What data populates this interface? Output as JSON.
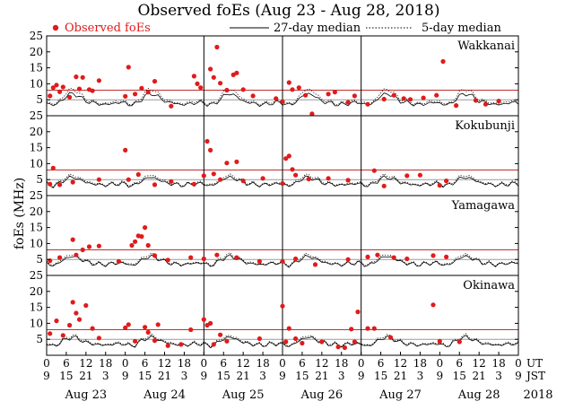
{
  "chart_data": {
    "type": "scatter",
    "title": "Observed foEs (Aug 23 - Aug 28, 2018)",
    "ylabel": "foEs (MHz)",
    "ylim": [
      0,
      25
    ],
    "yticks": [
      0,
      5,
      10,
      15,
      20,
      25
    ],
    "grid_lines_mhz": [
      5,
      8
    ],
    "xlim_hours": [
      0,
      144
    ],
    "legend": {
      "observed": "Observed foEs",
      "median27": "27-day median",
      "median5": "5-day median"
    },
    "x_axis": {
      "ut_label": "UT",
      "jst_label": "JST",
      "ut_ticks": [
        "0",
        "6",
        "12",
        "18",
        "0",
        "6",
        "12",
        "18",
        "0",
        "6",
        "12",
        "18",
        "0",
        "6",
        "12",
        "18",
        "0",
        "6",
        "12",
        "18",
        "0",
        "6",
        "12",
        "18",
        "0"
      ],
      "jst_ticks": [
        "9",
        "15",
        "21",
        "3",
        "9",
        "15",
        "21",
        "3",
        "9",
        "15",
        "21",
        "3",
        "9",
        "15",
        "21",
        "3",
        "9",
        "15",
        "21",
        "3",
        "9",
        "15",
        "21",
        "3",
        "9"
      ],
      "dates": [
        "Aug 23",
        "Aug 24",
        "Aug 25",
        "Aug 26",
        "Aug 27",
        "Aug 28"
      ],
      "year": "2018"
    },
    "day_boundaries_hours": [
      48,
      72,
      96
    ],
    "stations": [
      {
        "name": "Wakkanai",
        "median27": [
          4,
          3.6,
          3.4,
          3.6,
          4.3,
          5.2,
          6.1,
          6.7,
          6.9,
          6.6,
          6,
          5.2,
          4.6,
          4.3,
          4.1,
          3.9,
          3.7,
          3.5,
          3.5,
          3.6,
          3.8,
          4,
          4.1,
          4.1
        ],
        "median5": [
          4.4,
          4,
          3.7,
          3.9,
          4.8,
          6,
          7.2,
          8,
          8.3,
          7.9,
          7,
          6,
          5.2,
          4.8,
          4.5,
          4.3,
          4,
          3.8,
          3.8,
          4,
          4.3,
          4.5,
          4.5,
          4.5
        ],
        "observed": [
          [
            1,
            6.2
          ],
          [
            2,
            8.8
          ],
          [
            3,
            9.6
          ],
          [
            4,
            7.5
          ],
          [
            5,
            9
          ],
          [
            7,
            5.8
          ],
          [
            9,
            12.2
          ],
          [
            10,
            8.4
          ],
          [
            11,
            12
          ],
          [
            13,
            8.2
          ],
          [
            14,
            7.8
          ],
          [
            16,
            11
          ],
          [
            24,
            6.1
          ],
          [
            25,
            15.2
          ],
          [
            27,
            6.8
          ],
          [
            29,
            8.6
          ],
          [
            31,
            7.4
          ],
          [
            33,
            10.8
          ],
          [
            38,
            3
          ],
          [
            45,
            12.4
          ],
          [
            46,
            10
          ],
          [
            47,
            8.8
          ],
          [
            50,
            14.6
          ],
          [
            51,
            12
          ],
          [
            52,
            21.5
          ],
          [
            53,
            10.2
          ],
          [
            55,
            8
          ],
          [
            57,
            12.8
          ],
          [
            58,
            13.4
          ],
          [
            60,
            8.2
          ],
          [
            63,
            6.2
          ],
          [
            70,
            5.4
          ],
          [
            72,
            4.4
          ],
          [
            74,
            10.4
          ],
          [
            75,
            8.2
          ],
          [
            77,
            8.8
          ],
          [
            79,
            6.4
          ],
          [
            81,
            0.6
          ],
          [
            86,
            6.8
          ],
          [
            88,
            7.4
          ],
          [
            92,
            4.2
          ],
          [
            94,
            6.2
          ],
          [
            98,
            3.6
          ],
          [
            103,
            5.2
          ],
          [
            106,
            6.4
          ],
          [
            109,
            5.4
          ],
          [
            111,
            5.1
          ],
          [
            115,
            5.6
          ],
          [
            119,
            6.4
          ],
          [
            121,
            17
          ],
          [
            125,
            3.2
          ],
          [
            131,
            4.8
          ],
          [
            134,
            3.6
          ],
          [
            138,
            4.6
          ]
        ]
      },
      {
        "name": "Kokubunji",
        "median27": [
          3.6,
          3.3,
          3.1,
          3.3,
          3.9,
          4.6,
          5.2,
          5.6,
          5.7,
          5.5,
          5.1,
          4.6,
          4.1,
          3.9,
          3.7,
          3.5,
          3.4,
          3.3,
          3.3,
          3.4,
          3.5,
          3.6,
          3.7,
          3.7
        ],
        "median5": [
          3.9,
          3.6,
          3.4,
          3.6,
          4.3,
          5.1,
          5.8,
          6.2,
          6.4,
          6.1,
          5.6,
          5,
          4.5,
          4.2,
          4,
          3.8,
          3.6,
          3.5,
          3.5,
          3.6,
          3.8,
          3.9,
          4,
          4
        ],
        "observed": [
          [
            1,
            3.6
          ],
          [
            2,
            8.6
          ],
          [
            4,
            3.4
          ],
          [
            8,
            4.2
          ],
          [
            16,
            5
          ],
          [
            24,
            14.2
          ],
          [
            25,
            5
          ],
          [
            28,
            6.6
          ],
          [
            33,
            3.4
          ],
          [
            38,
            4.4
          ],
          [
            45,
            3.6
          ],
          [
            48,
            6.2
          ],
          [
            49,
            17
          ],
          [
            50,
            14.2
          ],
          [
            51,
            6.8
          ],
          [
            53,
            5
          ],
          [
            55,
            10.2
          ],
          [
            58,
            10.6
          ],
          [
            60,
            4.6
          ],
          [
            66,
            5.4
          ],
          [
            72,
            3.8
          ],
          [
            73,
            11.6
          ],
          [
            74,
            12.4
          ],
          [
            75,
            8.2
          ],
          [
            76,
            6.4
          ],
          [
            80,
            5.2
          ],
          [
            86,
            5.4
          ],
          [
            92,
            4.8
          ],
          [
            100,
            7.8
          ],
          [
            103,
            3
          ],
          [
            110,
            6.2
          ],
          [
            114,
            6.4
          ],
          [
            120,
            3.2
          ],
          [
            122,
            4.6
          ]
        ]
      },
      {
        "name": "Yamagawa",
        "median27": [
          3.7,
          3.4,
          3.2,
          3.4,
          4,
          4.8,
          5.4,
          5.8,
          5.9,
          5.7,
          5.3,
          4.8,
          4.3,
          4,
          3.8,
          3.6,
          3.5,
          3.4,
          3.4,
          3.5,
          3.7,
          3.8,
          3.9,
          3.9
        ],
        "median5": [
          4,
          3.7,
          3.5,
          3.7,
          4.4,
          5.3,
          6,
          6.4,
          6.5,
          6.2,
          5.7,
          5.1,
          4.6,
          4.3,
          4.1,
          3.9,
          3.7,
          3.6,
          3.6,
          3.7,
          3.9,
          4,
          4.1,
          4.1
        ],
        "observed": [
          [
            1,
            4.6
          ],
          [
            4,
            5.6
          ],
          [
            8,
            11.2
          ],
          [
            9,
            6.4
          ],
          [
            11,
            8
          ],
          [
            13,
            9
          ],
          [
            16,
            9.2
          ],
          [
            22,
            4.4
          ],
          [
            26,
            9.4
          ],
          [
            27,
            10.6
          ],
          [
            28,
            12.4
          ],
          [
            29,
            12.2
          ],
          [
            30,
            15
          ],
          [
            31,
            9.4
          ],
          [
            33,
            6.2
          ],
          [
            37,
            4.8
          ],
          [
            44,
            5.6
          ],
          [
            48,
            5.2
          ],
          [
            52,
            6.4
          ],
          [
            58,
            5.6
          ],
          [
            65,
            4.4
          ],
          [
            72,
            4.4
          ],
          [
            76,
            5.2
          ],
          [
            82,
            3.4
          ],
          [
            92,
            5
          ],
          [
            98,
            5.8
          ],
          [
            101,
            6.4
          ],
          [
            106,
            5.6
          ],
          [
            110,
            5.2
          ],
          [
            118,
            6.2
          ],
          [
            122,
            5.8
          ]
        ]
      },
      {
        "name": "Okinawa",
        "median27": [
          3.4,
          3.1,
          3,
          3.2,
          3.8,
          4.5,
          5.1,
          5.5,
          5.6,
          5.4,
          5,
          4.5,
          4,
          3.8,
          3.6,
          3.4,
          3.3,
          3.2,
          3.2,
          3.3,
          3.4,
          3.5,
          3.6,
          3.6
        ],
        "median5": [
          3.7,
          3.4,
          3.2,
          3.4,
          4.1,
          4.9,
          5.6,
          6,
          6.1,
          5.8,
          5.4,
          4.8,
          4.3,
          4.1,
          3.9,
          3.7,
          3.5,
          3.4,
          3.4,
          3.5,
          3.7,
          3.8,
          3.9,
          3.9
        ],
        "observed": [
          [
            1,
            6.8
          ],
          [
            3,
            10.8
          ],
          [
            5,
            6.2
          ],
          [
            7,
            9.4
          ],
          [
            8,
            16.6
          ],
          [
            9,
            13.2
          ],
          [
            10,
            11.2
          ],
          [
            12,
            15.6
          ],
          [
            14,
            8.4
          ],
          [
            16,
            5.4
          ],
          [
            24,
            8.6
          ],
          [
            25,
            9.6
          ],
          [
            27,
            4.4
          ],
          [
            30,
            8.8
          ],
          [
            31,
            7.2
          ],
          [
            33,
            4.6
          ],
          [
            34,
            9.6
          ],
          [
            37,
            3
          ],
          [
            41,
            3.4
          ],
          [
            44,
            8
          ],
          [
            48,
            11.2
          ],
          [
            49,
            9.4
          ],
          [
            50,
            10
          ],
          [
            51,
            3.4
          ],
          [
            53,
            6.4
          ],
          [
            55,
            4.4
          ],
          [
            65,
            5.2
          ],
          [
            72,
            15.4
          ],
          [
            73,
            4.2
          ],
          [
            74,
            8.4
          ],
          [
            76,
            5.2
          ],
          [
            78,
            3.8
          ],
          [
            84,
            4.2
          ],
          [
            89,
            2.6
          ],
          [
            91,
            2.4
          ],
          [
            93,
            8.2
          ],
          [
            94,
            4.2
          ],
          [
            95,
            13.6
          ],
          [
            98,
            8.4
          ],
          [
            100,
            8.4
          ],
          [
            105,
            5.6
          ],
          [
            118,
            15.8
          ],
          [
            120,
            4.4
          ],
          [
            126,
            4.2
          ]
        ]
      }
    ]
  }
}
